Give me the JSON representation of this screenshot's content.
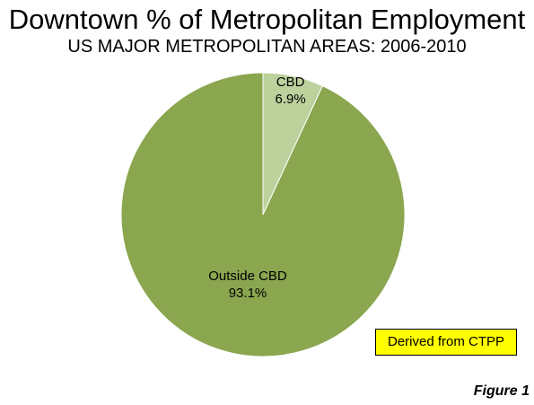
{
  "chart_data": {
    "type": "pie",
    "title": "Downtown % of Metropolitan Employment",
    "subtitle": "US MAJOR METROPOLITAN AREAS: 2006-2010",
    "slices": [
      {
        "label": "CBD",
        "value_label": "6.9%",
        "value": 6.9,
        "color": "#bcd19c"
      },
      {
        "label": "Outside CBD",
        "value_label": "93.1%",
        "value": 93.1,
        "color": "#8aa64f"
      }
    ],
    "start_angle": "12 o'clock",
    "direction": "clockwise",
    "legend": "none"
  },
  "source_note": "Derived from CTPP",
  "source_note_color": "#ffff00",
  "figure_label": "Figure 1"
}
